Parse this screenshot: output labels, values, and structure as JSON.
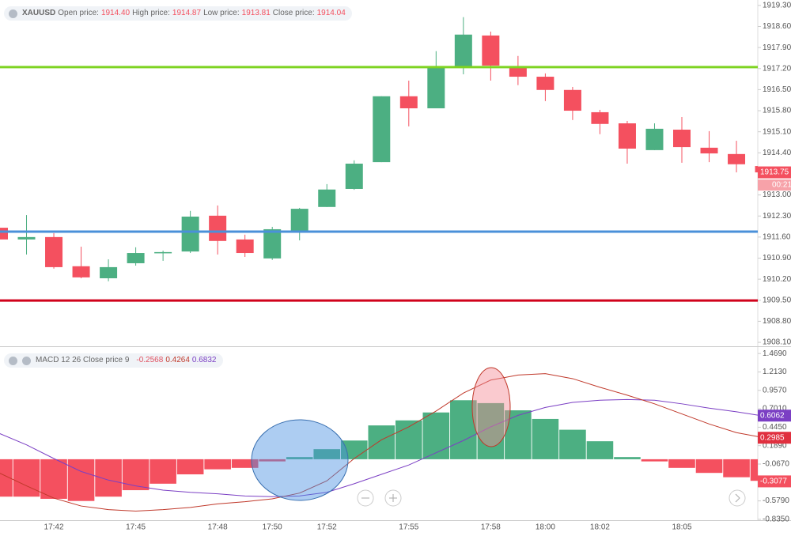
{
  "chart_data": [
    {
      "type": "candlestick",
      "legend": {
        "symbol": "XAUUSD",
        "fields": [
          {
            "label": "Open price:",
            "value": "1914.40"
          },
          {
            "label": "High price:",
            "value": "1914.87"
          },
          {
            "label": "Low price:",
            "value": "1913.81"
          },
          {
            "label": "Close price:",
            "value": "1914.04"
          }
        ]
      },
      "categories": [
        null,
        null,
        "17:42",
        null,
        null,
        "17:45",
        null,
        null,
        "17:48",
        null,
        "17:50",
        null,
        "17:52",
        null,
        null,
        "17:55",
        null,
        null,
        "17:58",
        null,
        "18:00",
        null,
        "18:02",
        null,
        null,
        "18:05",
        null,
        null,
        null
      ],
      "open": [
        1911.91,
        1911.52,
        1911.6,
        1910.63,
        1910.23,
        1910.73,
        1911.06,
        1911.12,
        1912.31,
        1911.52,
        1910.89,
        1911.81,
        1912.6,
        1913.2,
        1914.09,
        1916.28,
        1915.88,
        1917.22,
        1918.3,
        1917.22,
        1916.93,
        1916.49,
        1915.75,
        1915.38,
        1914.49,
        1915.17,
        1914.57,
        1914.36,
        1913.96
      ],
      "high": [
        1912.0,
        1912.33,
        1911.73,
        1911.28,
        1910.86,
        1911.26,
        1911.15,
        1912.47,
        1912.65,
        1911.68,
        1911.94,
        1912.57,
        1913.36,
        1914.15,
        1916.28,
        1916.8,
        1917.78,
        1918.91,
        1918.43,
        1917.62,
        1917.04,
        1916.59,
        1915.83,
        1915.46,
        1915.38,
        1915.59,
        1915.12,
        1914.8,
        1914.0
      ],
      "low": [
        1911.45,
        1911.02,
        1910.55,
        1910.23,
        1910.13,
        1910.65,
        1910.81,
        1911.07,
        1911.02,
        1910.94,
        1910.84,
        1911.49,
        1912.6,
        1913.17,
        1914.09,
        1915.28,
        1915.88,
        1917.01,
        1916.8,
        1916.65,
        1916.12,
        1915.49,
        1915.02,
        1914.04,
        1914.49,
        1914.07,
        1914.09,
        1913.75,
        1913.7
      ],
      "close": [
        1911.52,
        1911.6,
        1910.6,
        1910.26,
        1910.6,
        1911.07,
        1911.1,
        1912.28,
        1911.47,
        1911.07,
        1911.86,
        1912.54,
        1913.18,
        1914.04,
        1916.28,
        1915.88,
        1917.22,
        1918.33,
        1917.3,
        1916.93,
        1916.49,
        1915.8,
        1915.36,
        1914.54,
        1915.2,
        1914.59,
        1914.38,
        1914.02,
        1913.75
      ],
      "up_color": "#4caf82",
      "down_color": "#f4505f",
      "levels": [
        {
          "value": 1917.25,
          "color": "#7ed321"
        },
        {
          "value": 1911.78,
          "color": "#4a90d9"
        },
        {
          "value": 1909.49,
          "color": "#d0021b"
        }
      ],
      "last_price": {
        "value": 1913.75,
        "label": "1913.75",
        "color": "#f4505f"
      },
      "countdown": "00:21",
      "ylim": [
        1907.97,
        1919.48
      ],
      "yticks": [
        {
          "value": 1919.3,
          "label": "1919.30"
        },
        {
          "value": 1918.6,
          "label": "1918.60"
        },
        {
          "value": 1917.9,
          "label": "1917.90"
        },
        {
          "value": 1917.2,
          "label": "1917.20"
        },
        {
          "value": 1916.5,
          "label": "1916.50"
        },
        {
          "value": 1915.8,
          "label": "1915.80"
        },
        {
          "value": 1915.1,
          "label": "1915.10"
        },
        {
          "value": 1914.4,
          "label": "1914.40"
        },
        {
          "value": 1913,
          "label": "1913.00"
        },
        {
          "value": 1912.3,
          "label": "1912.30"
        },
        {
          "value": 1911.6,
          "label": "1911.60"
        },
        {
          "value": 1910.9,
          "label": "1910.90"
        },
        {
          "value": 1910.2,
          "label": "1910.20"
        },
        {
          "value": 1909.5,
          "label": "1909.50"
        },
        {
          "value": 1908.8,
          "label": "1908.80"
        },
        {
          "value": 1908.1,
          "label": "1908.10"
        }
      ]
    },
    {
      "type": "macd",
      "title": "MACD 12 26 Close price 9",
      "readouts": [
        {
          "label": "-0.2568",
          "color": "#e0505f"
        },
        {
          "label": "0.4264",
          "color": "#c0392b"
        },
        {
          "label": "0.6832",
          "color": "#7b3fc4"
        }
      ],
      "histogram": {
        "values": [
          -0.52,
          -0.52,
          -0.55,
          -0.58,
          -0.52,
          -0.43,
          -0.34,
          -0.21,
          -0.14,
          -0.12,
          -0.03,
          0.03,
          0.14,
          0.26,
          0.47,
          0.54,
          0.65,
          0.82,
          0.78,
          0.68,
          0.56,
          0.41,
          0.25,
          0.03,
          -0.03,
          -0.12,
          -0.19,
          -0.25,
          -0.3
        ],
        "up_color": "#4caf82",
        "down_color": "#f4505f"
      },
      "macd_line": {
        "values": [
          -0.19,
          -0.37,
          -0.54,
          -0.65,
          -0.7,
          -0.72,
          -0.7,
          -0.67,
          -0.62,
          -0.59,
          -0.55,
          -0.47,
          -0.3,
          0.01,
          0.27,
          0.45,
          0.67,
          0.92,
          1.1,
          1.17,
          1.19,
          1.12,
          1.0,
          0.89,
          0.77,
          0.63,
          0.49,
          0.37,
          0.3
        ],
        "color": "#c0392b"
      },
      "signal_line": {
        "values": [
          0.36,
          0.2,
          0.01,
          -0.17,
          -0.29,
          -0.37,
          -0.43,
          -0.46,
          -0.48,
          -0.51,
          -0.52,
          -0.51,
          -0.46,
          -0.34,
          -0.21,
          -0.08,
          0.09,
          0.26,
          0.45,
          0.61,
          0.72,
          0.79,
          0.82,
          0.83,
          0.82,
          0.77,
          0.71,
          0.66,
          0.6
        ],
        "color": "#7b3fc4"
      },
      "last_labels": [
        {
          "value": 0.6062,
          "label": "0.6062",
          "color": "#7b3fc4"
        },
        {
          "value": 0.2985,
          "label": "0.2985",
          "color": "#e0303f"
        },
        {
          "value": -0.3077,
          "label": "-0.3077",
          "color": "#f4505f"
        }
      ],
      "ylim": [
        -0.847,
        1.548
      ],
      "yticks": [
        {
          "value": 1.469,
          "label": "1.4690"
        },
        {
          "value": 1.213,
          "label": "1.2130"
        },
        {
          "value": 0.957,
          "label": "0.9570"
        },
        {
          "value": 0.701,
          "label": "0.7010"
        },
        {
          "value": 0.445,
          "label": "0.4450"
        },
        {
          "value": 0.189,
          "label": "0.1890"
        },
        {
          "value": -0.067,
          "label": "-0.0670"
        },
        {
          "value": -0.579,
          "label": "-0.5790"
        },
        {
          "value": -0.835,
          "label": "-0.8350"
        }
      ]
    }
  ]
}
